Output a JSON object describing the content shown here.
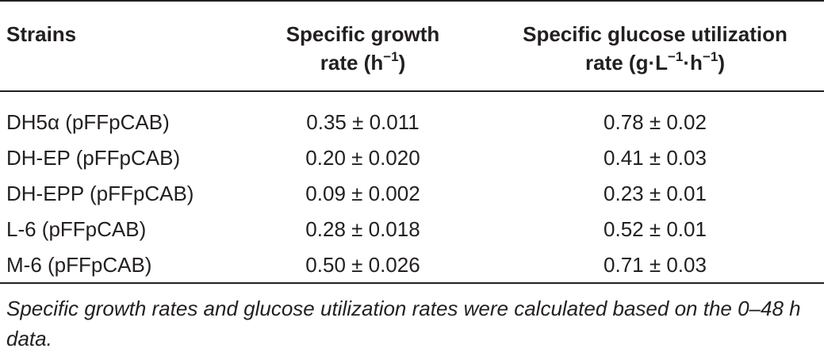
{
  "table": {
    "headers": {
      "strains": "Strains",
      "growth_line1": "Specific growth",
      "growth_line2_pre": "rate (h",
      "growth_line2_sup": "−1",
      "growth_line2_post": ")",
      "glucose_line1": "Specific glucose utilization",
      "glucose_line2_pre": "rate (g·L",
      "glucose_line2_sup1": "−1",
      "glucose_line2_mid": "·h",
      "glucose_line2_sup2": "−1",
      "glucose_line2_post": ")"
    },
    "rows": [
      {
        "strain": "DH5α (pFFpCAB)",
        "growth": "0.35 ± 0.011",
        "glucose": "0.78 ± 0.02"
      },
      {
        "strain": "DH-EP (pFFpCAB)",
        "growth": "0.20 ± 0.020",
        "glucose": "0.41 ± 0.03"
      },
      {
        "strain": "DH-EPP (pFFpCAB)",
        "growth": "0.09 ± 0.002",
        "glucose": "0.23 ± 0.01"
      },
      {
        "strain": "L-6 (pFFpCAB)",
        "growth": "0.28 ± 0.018",
        "glucose": "0.52 ± 0.01"
      },
      {
        "strain": "M-6 (pFFpCAB)",
        "growth": "0.50 ± 0.026",
        "glucose": "0.71 ± 0.03"
      }
    ],
    "footnote": "Specific growth rates and glucose utilization rates were calculated based on the 0–48 h data."
  }
}
